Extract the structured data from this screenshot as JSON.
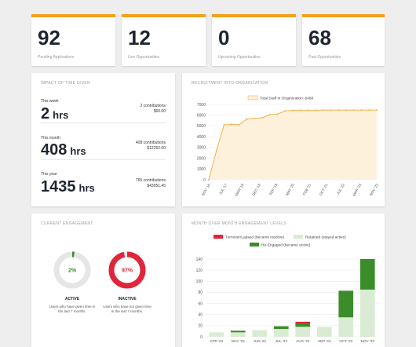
{
  "stats": [
    {
      "value": "92",
      "label": "Pending Applications"
    },
    {
      "value": "12",
      "label": "Live Opportunities"
    },
    {
      "value": "0",
      "label": "Upcoming Opportunities"
    },
    {
      "value": "68",
      "label": "Past Opportunities"
    }
  ],
  "time_given": {
    "title": "IMPACT OF TIME GIVEN",
    "rows": [
      {
        "period": "This week",
        "hours": "2",
        "unit": "hrs",
        "contributions": "2 contributions",
        "amount": "$60.00"
      },
      {
        "period": "This month",
        "hours": "408",
        "unit": "hrs",
        "contributions": "408 contributions",
        "amount": "$12252.00"
      },
      {
        "period": "This year",
        "hours": "1435",
        "unit": "hrs",
        "contributions": "765 contributions",
        "amount": "$43051.45"
      }
    ]
  },
  "recruitment": {
    "title": "RECRUITMENT INTO ORGANIZATION",
    "chart_data": {
      "type": "area",
      "series": [
        {
          "name": "Total Staff in Organization: 6468",
          "values": [
            0,
            2700,
            5100,
            5150,
            5120,
            5650,
            5700,
            5750,
            6050,
            6100,
            6400,
            6450,
            6460,
            6465,
            6466,
            6467,
            6468,
            6468,
            6468,
            6468,
            6468,
            6468,
            6468
          ]
        }
      ],
      "x": [
        "NOV '16",
        "",
        "JUL '17",
        "",
        "MAR '18",
        "",
        "DEC '18",
        "",
        "SEP '19",
        "",
        "MAY '20",
        "",
        "FEB '21",
        "",
        "OCT '21",
        "",
        "JUL '22",
        "",
        "MAR '23",
        "",
        "NOV '23",
        "",
        ""
      ],
      "x_ticks": [
        "NOV '16",
        "JUL '17",
        "MAR '18",
        "DEC '18",
        "SEP '19",
        "MAY '20",
        "FEB '21",
        "OCT '21",
        "JUL '22",
        "MAR '23",
        "NOV '23"
      ],
      "y_ticks": [
        "7000",
        "6000",
        "5000",
        "4000",
        "3000",
        "2000",
        "1000",
        "0"
      ],
      "ylim": [
        0,
        7000
      ],
      "colors": {
        "line": "#f0b453",
        "fill": "#fdf1dc"
      }
    }
  },
  "engagement": {
    "title": "CURRENT ENGAGEMENT",
    "active": {
      "percent": "2%",
      "value": 2,
      "label": "ACTIVE",
      "desc": "Users who have given time in the last 7 months.",
      "color": "#3a8d2a"
    },
    "inactive": {
      "percent": "97%",
      "value": 97,
      "label": "INACTIVE",
      "desc": "Users who have not given time in the last 7 months.",
      "color": "#e0263a"
    }
  },
  "mom": {
    "title": "MONTH OVER MONTH ENGAGEMENT LEVELS",
    "chart_data": {
      "type": "bar",
      "stacked": true,
      "categories": [
        "APR '23",
        "MAY '23",
        "JUN '23",
        "JUL '23",
        "AUG '23",
        "SEP '23",
        "OCT '23",
        "NOV '23"
      ],
      "series": [
        {
          "name": "Turnover/Lapsed (became inactive)",
          "color": "#e0263a",
          "values": [
            0,
            0,
            0,
            0,
            3,
            0,
            0,
            0
          ]
        },
        {
          "name": "Retained (stayed active)",
          "color": "#d9ecd3",
          "values": [
            8,
            8,
            12,
            14,
            18,
            18,
            35,
            85
          ]
        },
        {
          "name": "Re-Engaged (became active)",
          "color": "#3a8d2a",
          "values": [
            0,
            3,
            0,
            5,
            6,
            0,
            48,
            55
          ]
        }
      ],
      "y_ticks": [
        "140",
        "120",
        "100",
        "80",
        "60",
        "40",
        "20",
        "0"
      ],
      "ylim": [
        0,
        140
      ]
    }
  }
}
